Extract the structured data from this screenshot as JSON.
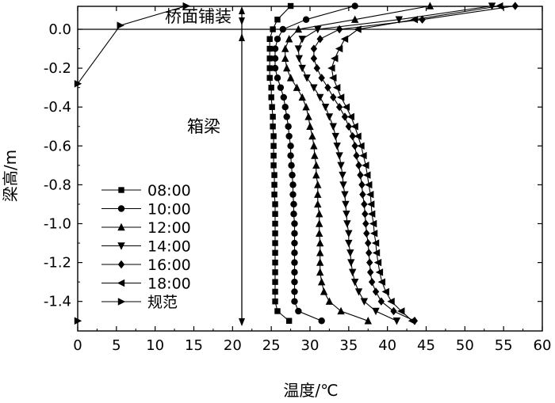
{
  "chart_data": {
    "type": "line",
    "xlabel": "温度/℃",
    "ylabel": "梁高/m",
    "xlim": [
      0,
      60
    ],
    "ylim": [
      -1.52,
      0.12
    ],
    "xticks": [
      "0",
      "5",
      "10",
      "15",
      "20",
      "25",
      "30",
      "35",
      "40",
      "45",
      "50",
      "55",
      "60"
    ],
    "yticks": [
      "0.0",
      "-0.2",
      "-0.4",
      "-0.6",
      "-0.8",
      "-1.0",
      "-1.2",
      "-1.4"
    ],
    "annotations": {
      "deck": "桥面铺装",
      "girder": "箱梁"
    },
    "legend_position": "bottom-left",
    "series": [
      {
        "name": "08:00",
        "marker": "square",
        "points": [
          [
            27.5,
            0.12
          ],
          [
            25.8,
            0.05
          ],
          [
            25.2,
            0.0
          ],
          [
            24.8,
            -0.05
          ],
          [
            24.8,
            -0.1
          ],
          [
            24.8,
            -0.15
          ],
          [
            24.8,
            -0.2
          ],
          [
            24.8,
            -0.25
          ],
          [
            25.0,
            -0.3
          ],
          [
            25.0,
            -0.35
          ],
          [
            25.1,
            -0.4
          ],
          [
            25.2,
            -0.45
          ],
          [
            25.2,
            -0.5
          ],
          [
            25.3,
            -0.55
          ],
          [
            25.3,
            -0.6
          ],
          [
            25.3,
            -0.65
          ],
          [
            25.3,
            -0.7
          ],
          [
            25.4,
            -0.75
          ],
          [
            25.4,
            -0.8
          ],
          [
            25.4,
            -0.85
          ],
          [
            25.5,
            -0.9
          ],
          [
            25.5,
            -0.95
          ],
          [
            25.5,
            -1.0
          ],
          [
            25.5,
            -1.05
          ],
          [
            25.5,
            -1.1
          ],
          [
            25.5,
            -1.15
          ],
          [
            25.5,
            -1.2
          ],
          [
            25.5,
            -1.25
          ],
          [
            25.5,
            -1.3
          ],
          [
            25.5,
            -1.35
          ],
          [
            25.5,
            -1.4
          ],
          [
            25.8,
            -1.45
          ],
          [
            27.3,
            -1.5
          ]
        ]
      },
      {
        "name": "10:00",
        "marker": "circle",
        "points": [
          [
            35.8,
            0.12
          ],
          [
            29.5,
            0.05
          ],
          [
            26.5,
            0.0
          ],
          [
            25.8,
            -0.05
          ],
          [
            25.5,
            -0.1
          ],
          [
            25.5,
            -0.15
          ],
          [
            25.5,
            -0.2
          ],
          [
            25.8,
            -0.25
          ],
          [
            26.2,
            -0.3
          ],
          [
            26.6,
            -0.35
          ],
          [
            26.8,
            -0.4
          ],
          [
            27.0,
            -0.45
          ],
          [
            27.2,
            -0.5
          ],
          [
            27.3,
            -0.55
          ],
          [
            27.5,
            -0.6
          ],
          [
            27.5,
            -0.65
          ],
          [
            27.6,
            -0.7
          ],
          [
            27.7,
            -0.75
          ],
          [
            27.8,
            -0.8
          ],
          [
            27.8,
            -0.85
          ],
          [
            27.9,
            -0.9
          ],
          [
            27.9,
            -0.95
          ],
          [
            28.0,
            -1.0
          ],
          [
            28.0,
            -1.05
          ],
          [
            28.0,
            -1.1
          ],
          [
            28.0,
            -1.15
          ],
          [
            28.0,
            -1.2
          ],
          [
            28.0,
            -1.25
          ],
          [
            28.0,
            -1.3
          ],
          [
            28.0,
            -1.35
          ],
          [
            28.0,
            -1.4
          ],
          [
            28.5,
            -1.45
          ],
          [
            31.5,
            -1.5
          ]
        ]
      },
      {
        "name": "12:00",
        "marker": "triangle-up",
        "points": [
          [
            45.5,
            0.12
          ],
          [
            35.8,
            0.05
          ],
          [
            28.5,
            0.0
          ],
          [
            27.3,
            -0.05
          ],
          [
            26.8,
            -0.1
          ],
          [
            26.8,
            -0.15
          ],
          [
            27.0,
            -0.2
          ],
          [
            27.5,
            -0.25
          ],
          [
            28.3,
            -0.3
          ],
          [
            29.0,
            -0.35
          ],
          [
            29.5,
            -0.4
          ],
          [
            29.8,
            -0.45
          ],
          [
            30.0,
            -0.5
          ],
          [
            30.3,
            -0.55
          ],
          [
            30.5,
            -0.6
          ],
          [
            30.6,
            -0.65
          ],
          [
            30.8,
            -0.7
          ],
          [
            30.8,
            -0.75
          ],
          [
            31.0,
            -0.8
          ],
          [
            31.0,
            -0.85
          ],
          [
            31.0,
            -0.9
          ],
          [
            31.2,
            -0.95
          ],
          [
            31.2,
            -1.0
          ],
          [
            31.2,
            -1.05
          ],
          [
            31.3,
            -1.1
          ],
          [
            31.3,
            -1.15
          ],
          [
            31.3,
            -1.2
          ],
          [
            31.3,
            -1.25
          ],
          [
            31.5,
            -1.3
          ],
          [
            31.8,
            -1.35
          ],
          [
            32.5,
            -1.4
          ],
          [
            34.0,
            -1.45
          ],
          [
            37.5,
            -1.5
          ]
        ]
      },
      {
        "name": "14:00",
        "marker": "triangle-down",
        "points": [
          [
            53.5,
            0.12
          ],
          [
            41.5,
            0.05
          ],
          [
            31.0,
            0.0
          ],
          [
            29.0,
            -0.05
          ],
          [
            28.5,
            -0.1
          ],
          [
            28.6,
            -0.15
          ],
          [
            29.0,
            -0.2
          ],
          [
            29.6,
            -0.25
          ],
          [
            30.5,
            -0.3
          ],
          [
            31.3,
            -0.35
          ],
          [
            32.0,
            -0.4
          ],
          [
            32.5,
            -0.45
          ],
          [
            33.0,
            -0.5
          ],
          [
            33.3,
            -0.55
          ],
          [
            33.5,
            -0.6
          ],
          [
            33.8,
            -0.65
          ],
          [
            34.0,
            -0.7
          ],
          [
            34.2,
            -0.75
          ],
          [
            34.3,
            -0.8
          ],
          [
            34.5,
            -0.85
          ],
          [
            34.6,
            -0.9
          ],
          [
            34.7,
            -0.95
          ],
          [
            34.8,
            -1.0
          ],
          [
            35.0,
            -1.05
          ],
          [
            35.0,
            -1.1
          ],
          [
            35.2,
            -1.15
          ],
          [
            35.3,
            -1.2
          ],
          [
            35.5,
            -1.25
          ],
          [
            35.8,
            -1.3
          ],
          [
            36.3,
            -1.35
          ],
          [
            37.0,
            -1.4
          ],
          [
            38.5,
            -1.45
          ],
          [
            41.2,
            -1.5
          ]
        ]
      },
      {
        "name": "16:00",
        "marker": "diamond",
        "points": [
          [
            56.5,
            0.12
          ],
          [
            44.5,
            0.05
          ],
          [
            33.8,
            0.0
          ],
          [
            31.3,
            -0.05
          ],
          [
            30.5,
            -0.1
          ],
          [
            30.5,
            -0.15
          ],
          [
            30.9,
            -0.2
          ],
          [
            31.5,
            -0.25
          ],
          [
            32.3,
            -0.3
          ],
          [
            33.0,
            -0.35
          ],
          [
            33.8,
            -0.4
          ],
          [
            34.5,
            -0.45
          ],
          [
            35.0,
            -0.5
          ],
          [
            35.5,
            -0.55
          ],
          [
            35.8,
            -0.6
          ],
          [
            36.0,
            -0.65
          ],
          [
            36.3,
            -0.7
          ],
          [
            36.5,
            -0.75
          ],
          [
            36.7,
            -0.8
          ],
          [
            36.8,
            -0.85
          ],
          [
            37.0,
            -0.9
          ],
          [
            37.1,
            -0.95
          ],
          [
            37.2,
            -1.0
          ],
          [
            37.3,
            -1.05
          ],
          [
            37.5,
            -1.1
          ],
          [
            37.6,
            -1.15
          ],
          [
            37.7,
            -1.2
          ],
          [
            37.8,
            -1.25
          ],
          [
            38.0,
            -1.3
          ],
          [
            38.5,
            -1.35
          ],
          [
            39.2,
            -1.4
          ],
          [
            40.8,
            -1.45
          ],
          [
            43.5,
            -1.5
          ]
        ]
      },
      {
        "name": "18:00",
        "marker": "triangle-left",
        "points": [
          [
            54.5,
            0.12
          ],
          [
            43.5,
            0.05
          ],
          [
            36.2,
            0.0
          ],
          [
            34.5,
            -0.05
          ],
          [
            33.8,
            -0.1
          ],
          [
            33.2,
            -0.15
          ],
          [
            32.8,
            -0.2
          ],
          [
            33.0,
            -0.25
          ],
          [
            33.5,
            -0.3
          ],
          [
            34.0,
            -0.35
          ],
          [
            34.7,
            -0.4
          ],
          [
            35.3,
            -0.45
          ],
          [
            35.8,
            -0.5
          ],
          [
            36.2,
            -0.55
          ],
          [
            36.6,
            -0.6
          ],
          [
            36.9,
            -0.65
          ],
          [
            37.2,
            -0.7
          ],
          [
            37.4,
            -0.75
          ],
          [
            37.6,
            -0.8
          ],
          [
            37.8,
            -0.85
          ],
          [
            37.9,
            -0.9
          ],
          [
            38.0,
            -0.95
          ],
          [
            38.2,
            -1.0
          ],
          [
            38.3,
            -1.05
          ],
          [
            38.5,
            -1.1
          ],
          [
            38.6,
            -1.15
          ],
          [
            38.8,
            -1.2
          ],
          [
            39.0,
            -1.25
          ],
          [
            39.3,
            -1.3
          ],
          [
            39.8,
            -1.35
          ],
          [
            40.5,
            -1.4
          ],
          [
            41.8,
            -1.45
          ],
          [
            43.2,
            -1.5
          ]
        ]
      },
      {
        "name": "规范",
        "marker": "triangle-right",
        "points": [
          [
            14.0,
            0.12
          ],
          [
            5.5,
            0.02
          ],
          [
            0.0,
            -0.28
          ]
        ],
        "extra_points": [
          [
            0.0,
            -1.5
          ]
        ]
      }
    ]
  }
}
